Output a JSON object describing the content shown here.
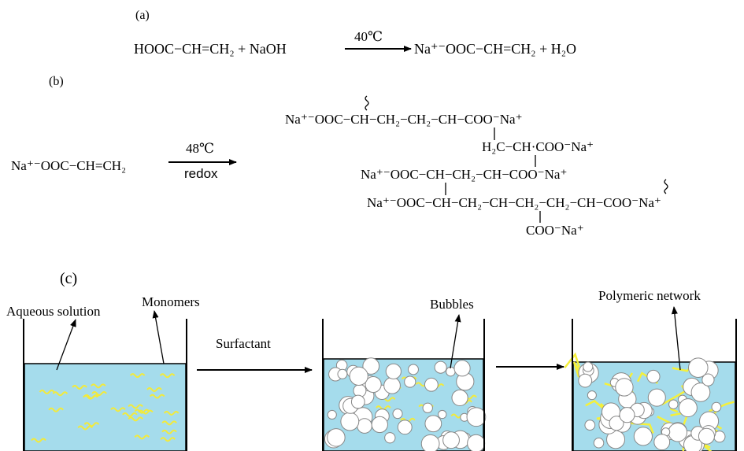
{
  "part_a": {
    "label": "(a)",
    "reactants": "HOOC−CH=CH₂ + NaOH",
    "condition": "40℃",
    "products": "Na⁺⁻OOC−CH=CH₂ + H₂O"
  },
  "part_b": {
    "label": "(b)",
    "monomer": "Na⁺⁻OOC−CH=CH₂",
    "conditions": [
      "48℃",
      "redox"
    ],
    "polymer_lines": [
      "Na⁺⁻OOC−CH−CH₂−CH₂−CH−COO⁻Na⁺",
      "H₂C−CH·COO⁻Na⁺",
      "Na⁺⁻OOC−CH−CH₂−CH−COO⁻Na⁺",
      "Na⁺⁻OOC−CH−CH₂−CH−CH₂−CH₂−CH−COO⁻Na⁺",
      "COO⁻Na⁺"
    ]
  },
  "part_c": {
    "label": "(c)",
    "aqueous_solution": "Aqueous solution",
    "monomers": "Monomers",
    "surfactant": "Surfactant",
    "bubbles": "Bubbles",
    "polymeric_network": "Polymeric network"
  }
}
